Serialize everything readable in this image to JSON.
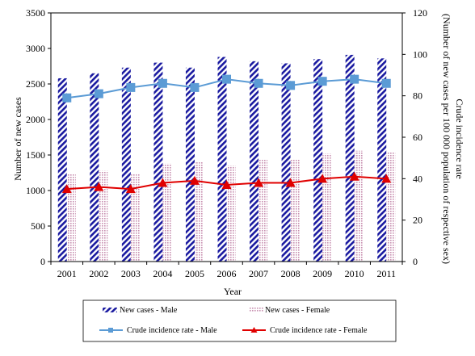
{
  "chart_data": {
    "type": "bar",
    "categories": [
      "2001",
      "2002",
      "2003",
      "2004",
      "2005",
      "2006",
      "2007",
      "2008",
      "2009",
      "2010",
      "2011"
    ],
    "series": [
      {
        "name": "New cases - Male",
        "kind": "bar",
        "axis": "left",
        "color": "#1a1aa0",
        "values": [
          2580,
          2650,
          2730,
          2800,
          2730,
          2880,
          2820,
          2790,
          2850,
          2910,
          2860
        ]
      },
      {
        "name": "New cases - Female",
        "kind": "bar",
        "axis": "left",
        "color": "#c890b0",
        "values": [
          1230,
          1280,
          1240,
          1380,
          1400,
          1350,
          1440,
          1440,
          1520,
          1560,
          1540
        ]
      },
      {
        "name": "Crude incidence rate - Male",
        "kind": "line",
        "axis": "right",
        "color": "#5b9bd5",
        "marker": "square",
        "values": [
          79,
          81,
          84,
          86,
          84,
          88,
          86,
          85,
          87,
          88,
          86
        ]
      },
      {
        "name": "Crude incidence rate - Female",
        "kind": "line",
        "axis": "right",
        "color": "#e00000",
        "marker": "triangle",
        "values": [
          35,
          36,
          35,
          38,
          39,
          37,
          38,
          38,
          40,
          41,
          40
        ]
      }
    ],
    "xlabel": "Year",
    "ylabel": "Number of new cases",
    "ylabel_right_line1": "Crude incidence rate",
    "ylabel_right_line2": "(Number of new cases per 100 000 population of respective sex)",
    "ylim": [
      0,
      3500
    ],
    "yticks": [
      "0",
      "500",
      "1000",
      "1500",
      "2000",
      "2500",
      "3000",
      "3500"
    ],
    "ylim_right": [
      0,
      120
    ],
    "yticks_right": [
      "0",
      "20",
      "40",
      "60",
      "80",
      "100",
      "120"
    ],
    "grid": false,
    "legend_position": "bottom"
  }
}
